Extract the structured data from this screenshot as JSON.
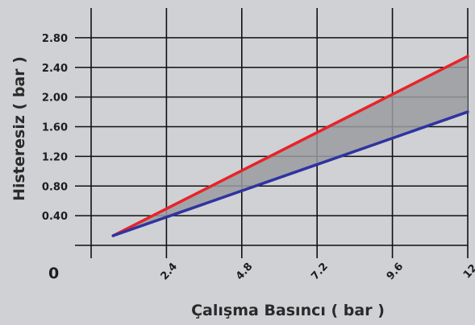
{
  "chart_data": {
    "type": "area",
    "title": "",
    "xlabel": "Çalışma Basıncı ( bar )",
    "ylabel": "Histeresiz ( bar )",
    "origin_label": "0",
    "xlim": [
      0,
      12
    ],
    "ylim": [
      0,
      3.2
    ],
    "x_ticks": [
      2.4,
      4.8,
      7.2,
      9.6,
      12
    ],
    "x_tick_labels": [
      "2.4",
      "4.8",
      "7.2",
      "9.6",
      "12"
    ],
    "y_ticks": [
      0.4,
      0.8,
      1.2,
      1.6,
      2.0,
      2.4,
      2.8
    ],
    "y_tick_labels": [
      "0.40",
      "0.80",
      "1.20",
      "1.60",
      "2.00",
      "2.40",
      "2.80"
    ],
    "grid": true,
    "band_fill": "shaded region between series",
    "series": [
      {
        "color": "#e8232a",
        "x": [
          0.7,
          12
        ],
        "y": [
          0.13,
          2.55
        ]
      },
      {
        "color": "#2f33a0",
        "x": [
          0.7,
          12
        ],
        "y": [
          0.13,
          1.8
        ]
      }
    ],
    "colors": {
      "background": "#cfd1d4",
      "grid": "#111111",
      "band": "#9a9ca0"
    }
  }
}
